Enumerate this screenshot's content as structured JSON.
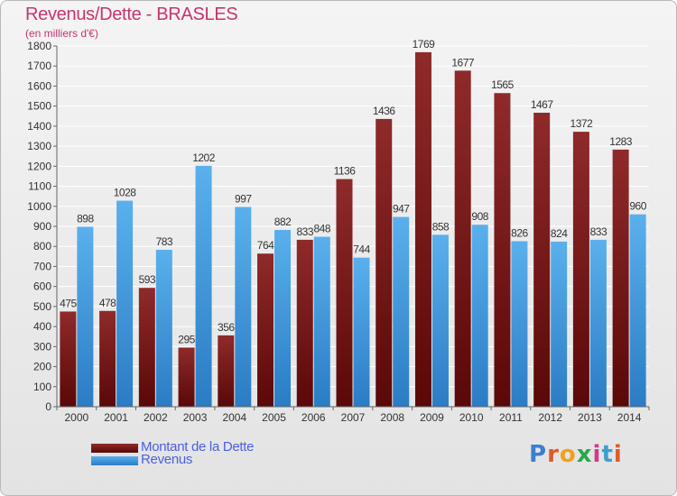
{
  "chart_data": {
    "type": "bar",
    "title": "Revenus/Dette - BRASLES",
    "subtitle": "(en milliers d'€)",
    "categories": [
      "2000",
      "2001",
      "2002",
      "2003",
      "2004",
      "2005",
      "2006",
      "2007",
      "2008",
      "2009",
      "2010",
      "2011",
      "2012",
      "2013",
      "2014"
    ],
    "series": [
      {
        "name": "Montant de la Dette",
        "color": "#8b1a1a",
        "values": [
          475,
          478,
          593,
          295,
          356,
          764,
          833,
          1136,
          1436,
          1769,
          1677,
          1565,
          1467,
          1372,
          1283
        ]
      },
      {
        "name": "Revenus",
        "color": "#3c98e0",
        "values": [
          898,
          1028,
          783,
          1202,
          997,
          882,
          848,
          744,
          947,
          858,
          908,
          826,
          824,
          833,
          960
        ]
      }
    ],
    "ylim": [
      0,
      1800
    ],
    "yticks": [
      0,
      100,
      200,
      300,
      400,
      500,
      600,
      700,
      800,
      900,
      1000,
      1100,
      1200,
      1300,
      1400,
      1500,
      1600,
      1700,
      1800
    ],
    "grid": true,
    "legend_position": "bottom-left"
  },
  "logo_text": "Proxiti"
}
